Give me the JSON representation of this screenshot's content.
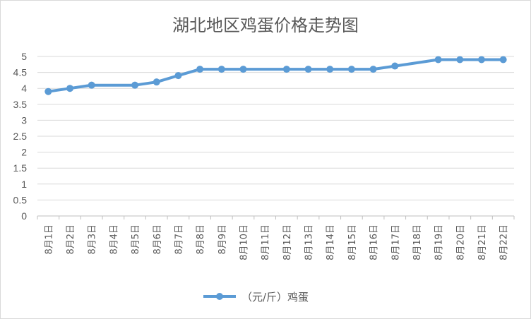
{
  "chart_data": {
    "type": "line",
    "title": "湖北地区鸡蛋价格走势图",
    "categories": [
      "8月1日",
      "8月2日",
      "8月3日",
      "8月4日",
      "8月5日",
      "8月6日",
      "8月7日",
      "8月8日",
      "8月9日",
      "8月10日",
      "8月11日",
      "8月12日",
      "8月13日",
      "8月14日",
      "8月15日",
      "8月16日",
      "8月17日",
      "8月18日",
      "8月19日",
      "8月20日",
      "8月21日",
      "8月22日"
    ],
    "series": [
      {
        "name": "（元/斤）鸡蛋",
        "color": "#5b9bd5",
        "values": [
          3.9,
          4.0,
          4.1,
          null,
          4.1,
          4.2,
          4.4,
          4.6,
          4.6,
          4.6,
          null,
          4.6,
          4.6,
          4.6,
          4.6,
          4.6,
          4.7,
          null,
          4.9,
          4.9,
          4.9,
          4.9
        ]
      }
    ],
    "ylim": [
      0,
      5
    ],
    "yticks": [
      "0",
      "0.5",
      "1",
      "1.5",
      "2",
      "2.5",
      "3",
      "3.5",
      "4",
      "4.5",
      "5"
    ],
    "grid": true,
    "legend_position": "bottom"
  }
}
